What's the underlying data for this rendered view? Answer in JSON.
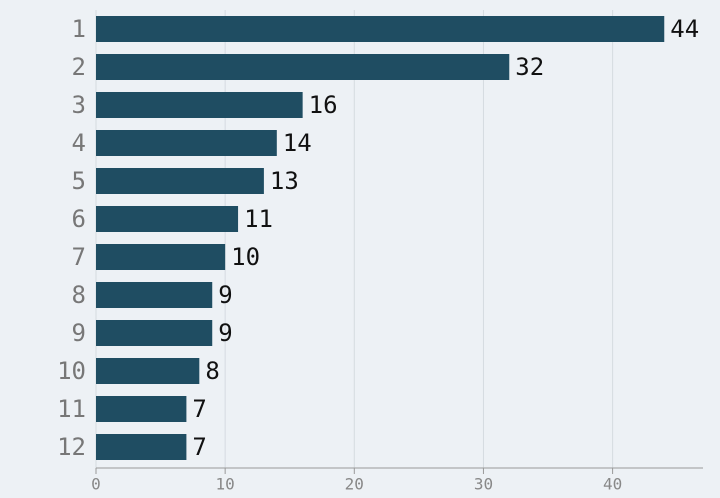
{
  "chart_data": {
    "type": "bar",
    "orientation": "horizontal",
    "categories": [
      "1",
      "2",
      "3",
      "4",
      "5",
      "6",
      "7",
      "8",
      "9",
      "10",
      "11",
      "12"
    ],
    "values": [
      44,
      32,
      16,
      14,
      13,
      11,
      10,
      9,
      9,
      8,
      7,
      7
    ],
    "color": "#1f4d62",
    "xlim": [
      0,
      47
    ],
    "xticks": [
      0,
      10,
      20,
      30,
      40
    ],
    "grid": true
  }
}
